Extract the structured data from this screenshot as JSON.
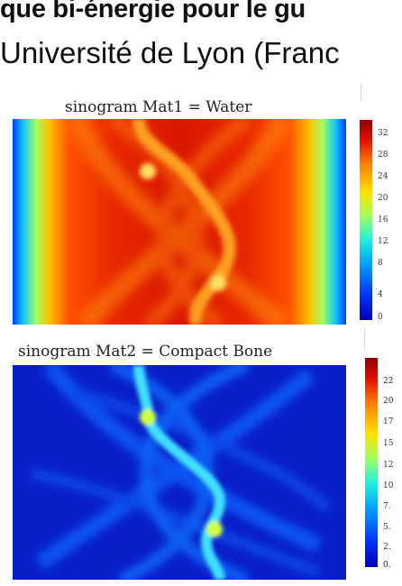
{
  "header": {
    "title": "que bi-énergie pour le gu",
    "subtitle": "Université de Lyon (Franc"
  },
  "figures": [
    {
      "title": "sinogram Mat1 = Water",
      "colorbar_ticks": [
        "32",
        "28",
        "24",
        "20",
        "16",
        "12",
        "8",
        "4",
        "0"
      ]
    },
    {
      "title": "sinogram Mat2 = Compact Bone",
      "colorbar_ticks": [
        "",
        "22",
        "20",
        "17",
        "15",
        "12",
        "10",
        "7.",
        "5.",
        "2.",
        "0."
      ]
    }
  ],
  "colors": {
    "colormap": "jet"
  }
}
